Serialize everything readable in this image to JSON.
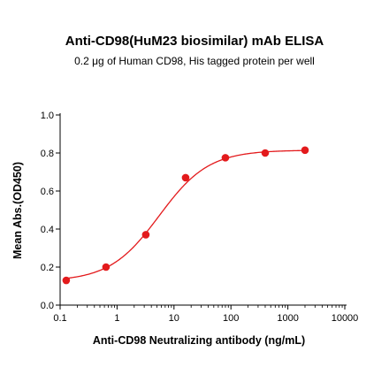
{
  "chart_data": {
    "type": "scatter",
    "title": "Anti-CD98(HuM23 biosimilar) mAb ELISA",
    "subtitle": "0.2 μg of Human CD98, His tagged protein per well",
    "xlabel": "Anti-CD98 Neutralizing antibody (ng/mL)",
    "ylabel": "Mean Abs.(OD450)",
    "x_scale": "log",
    "xlim": [
      0.1,
      10000
    ],
    "ylim": [
      0.0,
      1.0
    ],
    "x_ticks": [
      "0.1",
      "1",
      "10",
      "100",
      "1000",
      "10000"
    ],
    "x_tick_values": [
      0.1,
      1,
      10,
      100,
      1000,
      10000
    ],
    "y_ticks": [
      "0.0",
      "0.2",
      "0.4",
      "0.6",
      "0.8",
      "1.0"
    ],
    "y_tick_values": [
      0.0,
      0.2,
      0.4,
      0.6,
      0.8,
      1.0
    ],
    "grid": false,
    "colors": {
      "series": "#e31a1c",
      "axis": "#000000"
    },
    "series": [
      {
        "x": [
          0.128,
          0.64,
          3.2,
          16,
          80,
          400,
          2000
        ],
        "y": [
          0.13,
          0.2,
          0.37,
          0.67,
          0.775,
          0.8,
          0.815
        ]
      }
    ],
    "fit": {
      "type": "4PL",
      "bottom": 0.125,
      "top": 0.815,
      "ec50": 5.5,
      "hill": 1.0
    }
  }
}
